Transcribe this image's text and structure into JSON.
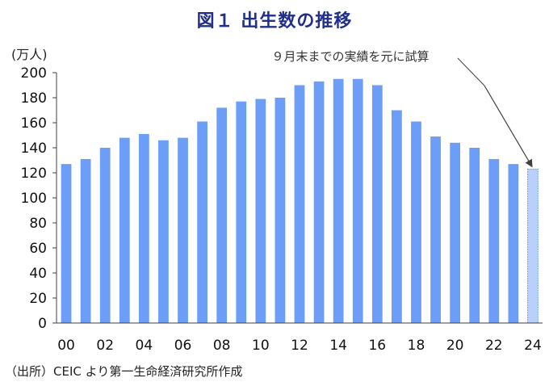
{
  "chart_data": {
    "type": "bar",
    "title": "図１ 出生数の推移",
    "ylabel": "(万人)",
    "ylim": [
      0,
      200
    ],
    "yticks": [
      0,
      20,
      40,
      60,
      80,
      100,
      120,
      140,
      160,
      180,
      200
    ],
    "grid": false,
    "categories": [
      "00",
      "01",
      "02",
      "03",
      "04",
      "05",
      "06",
      "07",
      "08",
      "09",
      "10",
      "11",
      "12",
      "13",
      "14",
      "15",
      "16",
      "17",
      "18",
      "19",
      "20",
      "21",
      "22",
      "23",
      "24"
    ],
    "x_tick_labels": [
      "00",
      "",
      "02",
      "",
      "04",
      "",
      "06",
      "",
      "08",
      "",
      "10",
      "",
      "12",
      "",
      "14",
      "",
      "16",
      "",
      "18",
      "",
      "20",
      "",
      "22",
      "",
      "24"
    ],
    "values": [
      127,
      131,
      140,
      148,
      151,
      146,
      148,
      161,
      172,
      177,
      179,
      180,
      190,
      193,
      195,
      195,
      190,
      170,
      161,
      149,
      144,
      140,
      131,
      127,
      123
    ],
    "colors": {
      "bar": "#6c9ef8",
      "bar_estimate": "#b9d0fb",
      "axis": "#404040",
      "title": "#1f2f8a",
      "annotation_arrow": "#404040"
    },
    "annotation": {
      "text": "９月末までの実績を元に試算",
      "target_category": "24"
    }
  },
  "source": "（出所）CEIC より第一生命経済研究所作成"
}
